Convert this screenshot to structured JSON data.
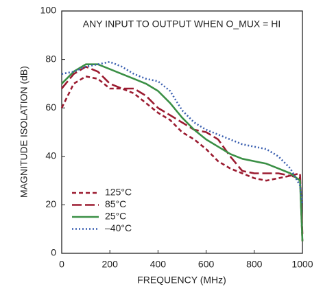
{
  "chart_data": {
    "type": "line",
    "annotation": "ANY INPUT TO OUTPUT WHEN O_MUX = HI",
    "xlabel": "FREQUENCY (MHz)",
    "ylabel": "MAGNITUDE ISOLATION (dB)",
    "x": [
      0,
      50,
      100,
      150,
      200,
      250,
      300,
      350,
      400,
      450,
      500,
      550,
      600,
      650,
      700,
      750,
      800,
      850,
      900,
      950,
      990,
      1000
    ],
    "series": [
      {
        "name": "125°C",
        "color": "#9b1b30",
        "dash": "6,4",
        "values": [
          60,
          70,
          73,
          72,
          68,
          68,
          66,
          62,
          58,
          55,
          50,
          47,
          43,
          38,
          35,
          33,
          31,
          30,
          31,
          32,
          31,
          5
        ]
      },
      {
        "name": "85°C",
        "color": "#9b1b30",
        "dash": "14,5",
        "values": [
          68,
          74,
          77,
          75,
          70,
          68,
          68,
          65,
          60,
          57,
          54,
          51,
          50,
          47,
          40,
          34,
          33,
          33,
          33,
          32,
          33,
          8
        ]
      },
      {
        "name": "25°C",
        "color": "#3a8f45",
        "dash": "none",
        "values": [
          70,
          75,
          78,
          78,
          76,
          74,
          72,
          70,
          67,
          62,
          56,
          51,
          47,
          44,
          41,
          39,
          38,
          37,
          35,
          33,
          30,
          5
        ]
      },
      {
        "name": "–40°C",
        "color": "#3a5fb0",
        "dash": "2,3",
        "values": [
          74,
          75,
          77,
          78,
          79,
          77,
          74,
          72,
          71,
          67,
          59,
          54,
          51,
          49,
          47,
          45,
          44,
          43,
          40,
          35,
          28,
          20
        ]
      }
    ],
    "xlim": [
      0,
      1000
    ],
    "xticks": [
      0,
      200,
      400,
      600,
      800,
      1000
    ],
    "ylim": [
      0,
      100
    ],
    "yticks": [
      0,
      20,
      40,
      60,
      80,
      100
    ],
    "grid": false
  }
}
